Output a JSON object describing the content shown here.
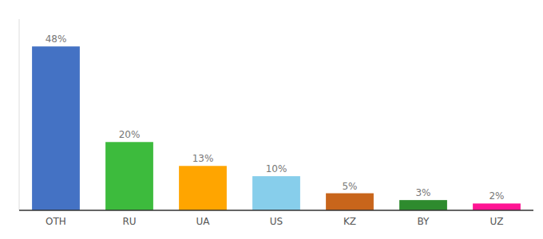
{
  "chart_data": {
    "type": "bar",
    "categories": [
      "OTH",
      "RU",
      "UA",
      "US",
      "KZ",
      "BY",
      "UZ"
    ],
    "values": [
      48,
      20,
      13,
      10,
      5,
      3,
      2
    ],
    "value_labels": [
      "48%",
      "20%",
      "13%",
      "10%",
      "5%",
      "3%",
      "2%"
    ],
    "colors": [
      "#4472c4",
      "#3dbb3d",
      "#ffa500",
      "#87ceeb",
      "#c8651b",
      "#2e8b2e",
      "#ff1493"
    ],
    "ylim": [
      0,
      56
    ],
    "data_labels": true,
    "tick_labels": "x",
    "grid": false
  }
}
